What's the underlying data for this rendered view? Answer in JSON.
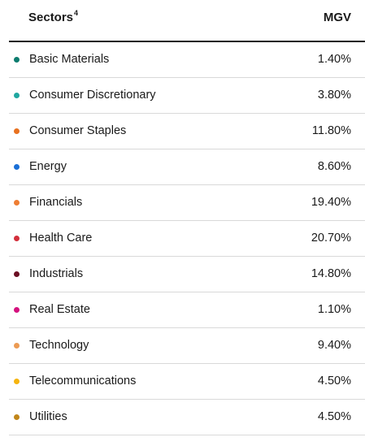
{
  "header": {
    "label": "Sectors",
    "footnote": "4",
    "value_label": "MGV"
  },
  "rows": [
    {
      "name": "Basic Materials",
      "value": "1.40%",
      "color": "#0c7c6e"
    },
    {
      "name": "Consumer Discretionary",
      "value": "3.80%",
      "color": "#20a7a0"
    },
    {
      "name": "Consumer Staples",
      "value": "11.80%",
      "color": "#e8711f"
    },
    {
      "name": "Energy",
      "value": "8.60%",
      "color": "#1a6fd6"
    },
    {
      "name": "Financials",
      "value": "19.40%",
      "color": "#ee7d33"
    },
    {
      "name": "Health Care",
      "value": "20.70%",
      "color": "#d32f3c"
    },
    {
      "name": "Industrials",
      "value": "14.80%",
      "color": "#6b0f23"
    },
    {
      "name": "Real Estate",
      "value": "1.10%",
      "color": "#d4127e"
    },
    {
      "name": "Technology",
      "value": "9.40%",
      "color": "#ec9b54"
    },
    {
      "name": "Telecommunications",
      "value": "4.50%",
      "color": "#f6b40e"
    },
    {
      "name": "Utilities",
      "value": "4.50%",
      "color": "#c1861a"
    }
  ]
}
